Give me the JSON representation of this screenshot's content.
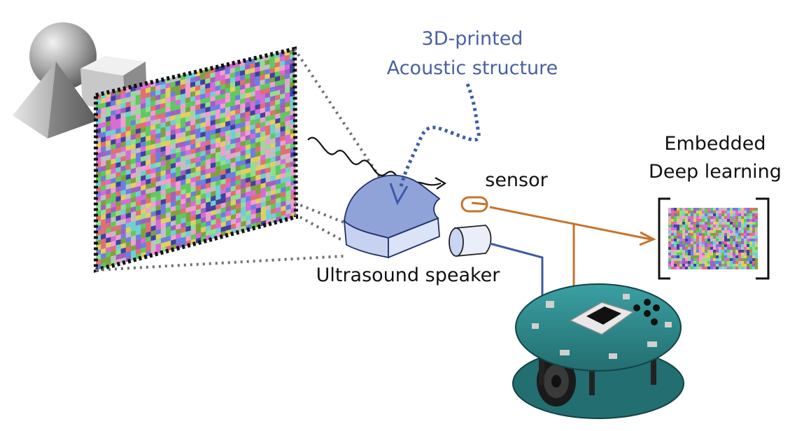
{
  "labels": {
    "acoustic_line1": "3D-printed",
    "acoustic_line2": "Acoustic structure",
    "sensor": "sensor",
    "embedded_line1": "Embedded",
    "embedded_line2": "Deep learning",
    "speaker": "Ultrasound speaker"
  },
  "colors": {
    "acoustic_text": "#4a60a3",
    "dotted_path": "#3e5aa7",
    "sensor_wire": "#c5742b",
    "speaker_wire": "#3e5aa7",
    "structure_fill": "#8fa3d8",
    "robot_board": "#2e8a8c",
    "frame_border": "#111111"
  },
  "icons": {
    "shapes": "geometric-shapes-icon",
    "wave": "sound-wave-icon",
    "sensor": "sensor-loop-icon",
    "speaker": "speaker-cylinder-icon",
    "robot": "arduino-robot-icon"
  }
}
